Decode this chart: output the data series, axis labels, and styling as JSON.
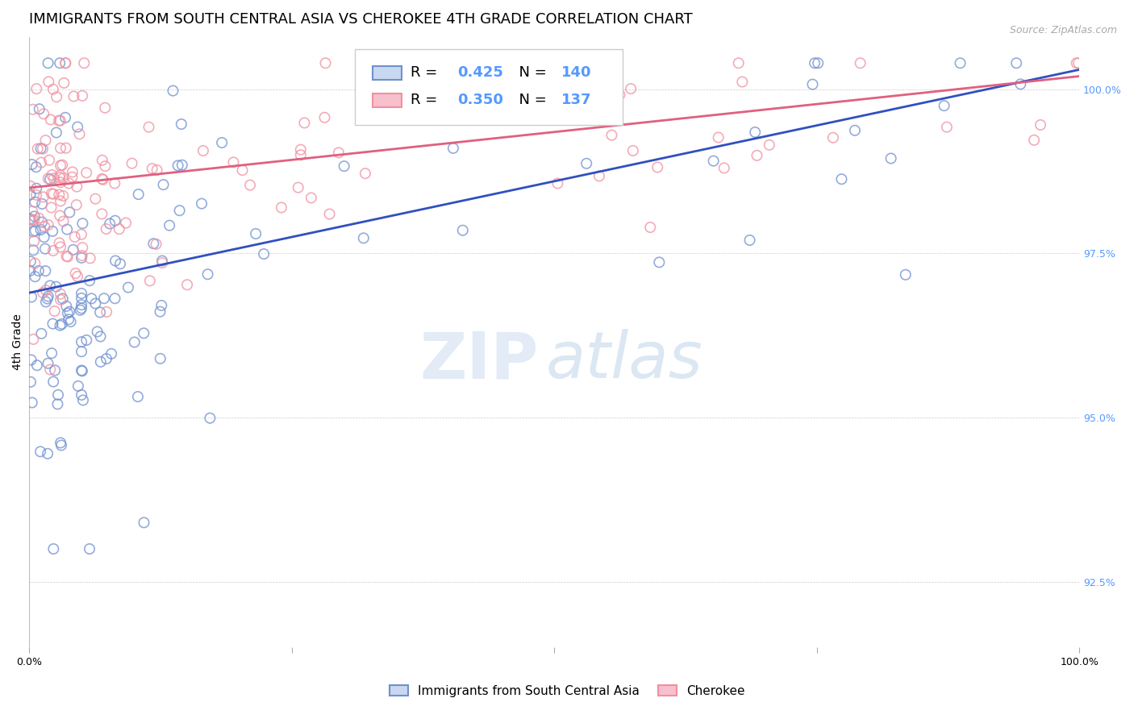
{
  "title": "IMMIGRANTS FROM SOUTH CENTRAL ASIA VS CHEROKEE 4TH GRADE CORRELATION CHART",
  "source": "Source: ZipAtlas.com",
  "ylabel": "4th Grade",
  "right_yticks": [
    100.0,
    97.5,
    95.0,
    92.5
  ],
  "xlim": [
    0.0,
    100.0
  ],
  "ylim": [
    91.5,
    100.8
  ],
  "blue_label": "Immigrants from South Central Asia",
  "pink_label": "Cherokee",
  "blue_R": 0.425,
  "blue_N": 140,
  "pink_R": 0.35,
  "pink_N": 137,
  "blue_color": "#7090D0",
  "pink_color": "#F090A0",
  "blue_line_color": "#3050C0",
  "pink_line_color": "#E06080",
  "background_color": "#ffffff",
  "dot_size": 80,
  "dot_linewidth": 1.2,
  "blue_trend_y_start": 96.9,
  "blue_trend_y_end": 100.3,
  "pink_trend_y_start": 98.5,
  "pink_trend_y_end": 100.2,
  "grid_color": "#cccccc",
  "grid_linestyle": "--",
  "grid_linewidth": 0.5,
  "right_axis_color": "#5599ff",
  "title_fontsize": 13,
  "axis_label_fontsize": 10,
  "tick_fontsize": 9,
  "legend_fontsize": 12
}
